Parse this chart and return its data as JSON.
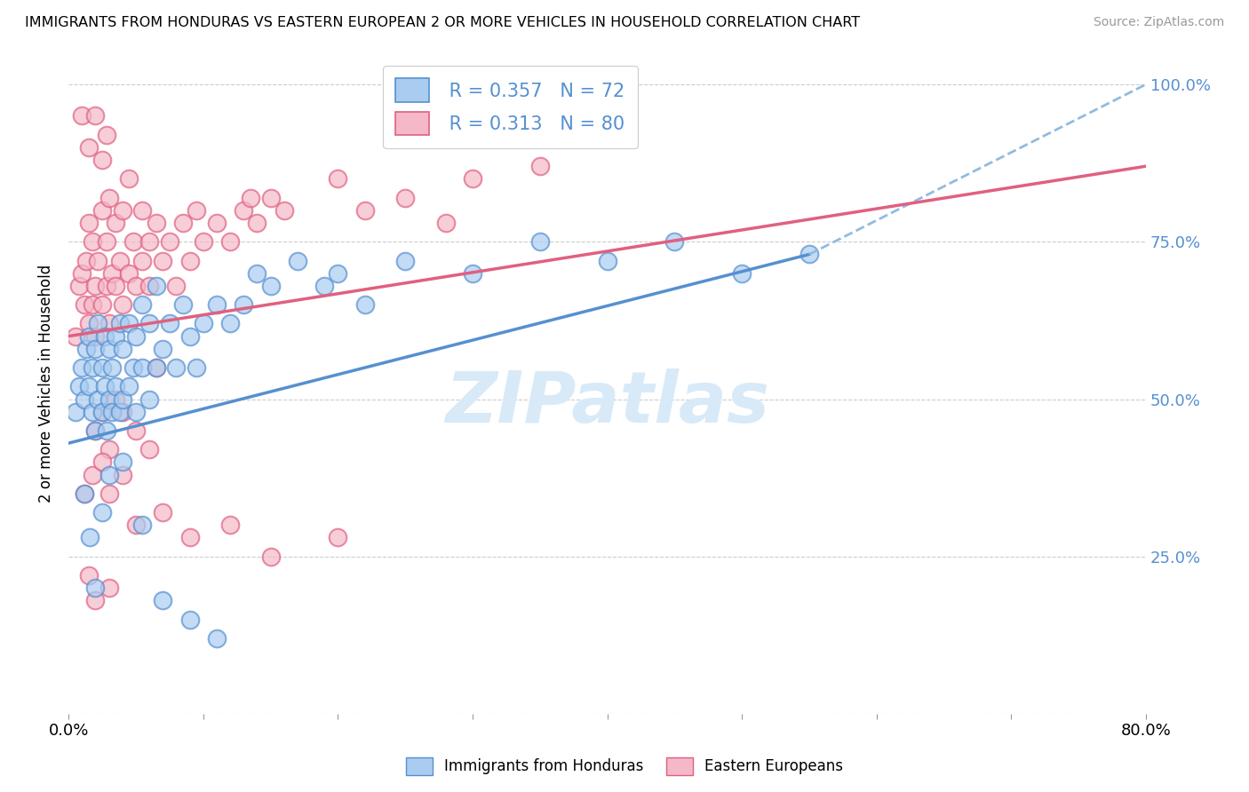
{
  "title": "IMMIGRANTS FROM HONDURAS VS EASTERN EUROPEAN 2 OR MORE VEHICLES IN HOUSEHOLD CORRELATION CHART",
  "source": "Source: ZipAtlas.com",
  "ylabel": "2 or more Vehicles in Household",
  "legend_label1": "Immigrants from Honduras",
  "legend_label2": "Eastern Europeans",
  "R1": 0.357,
  "N1": 72,
  "R2": 0.313,
  "N2": 80,
  "color1": "#aaccf0",
  "color2": "#f5b8c8",
  "line_color1": "#5590d0",
  "line_color2": "#e06080",
  "dashed_color": "#90bce0",
  "watermark_color": "#d8eaf8",
  "background": "#ffffff",
  "xlim": [
    0.0,
    0.8
  ],
  "ylim": [
    0.0,
    1.05
  ],
  "ytick_vals": [
    0.0,
    0.25,
    0.5,
    0.75,
    1.0
  ],
  "ytick_labels": [
    "",
    "25.0%",
    "50.0%",
    "75.0%",
    "100.0%"
  ],
  "blue_line_x0": 0.0,
  "blue_line_y0": 0.43,
  "blue_line_x1": 0.55,
  "blue_line_y1": 0.73,
  "pink_line_x0": 0.0,
  "pink_line_y0": 0.6,
  "pink_line_x1": 0.8,
  "pink_line_y1": 0.87,
  "dash_line_x0": 0.55,
  "dash_line_y0": 0.73,
  "dash_line_x1": 0.8,
  "dash_line_y1": 1.0,
  "scatter1_x": [
    0.005,
    0.008,
    0.01,
    0.012,
    0.013,
    0.015,
    0.015,
    0.018,
    0.018,
    0.02,
    0.02,
    0.022,
    0.022,
    0.025,
    0.025,
    0.027,
    0.027,
    0.028,
    0.03,
    0.03,
    0.032,
    0.032,
    0.035,
    0.035,
    0.038,
    0.038,
    0.04,
    0.04,
    0.045,
    0.045,
    0.048,
    0.05,
    0.05,
    0.055,
    0.055,
    0.06,
    0.06,
    0.065,
    0.065,
    0.07,
    0.075,
    0.08,
    0.085,
    0.09,
    0.095,
    0.1,
    0.11,
    0.12,
    0.13,
    0.14,
    0.15,
    0.17,
    0.19,
    0.2,
    0.22,
    0.25,
    0.3,
    0.35,
    0.4,
    0.45,
    0.5,
    0.55,
    0.012,
    0.016,
    0.02,
    0.025,
    0.03,
    0.04,
    0.055,
    0.07,
    0.09,
    0.11
  ],
  "scatter1_y": [
    0.48,
    0.52,
    0.55,
    0.5,
    0.58,
    0.52,
    0.6,
    0.48,
    0.55,
    0.45,
    0.58,
    0.5,
    0.62,
    0.48,
    0.55,
    0.52,
    0.6,
    0.45,
    0.5,
    0.58,
    0.48,
    0.55,
    0.52,
    0.6,
    0.48,
    0.62,
    0.5,
    0.58,
    0.52,
    0.62,
    0.55,
    0.48,
    0.6,
    0.55,
    0.65,
    0.5,
    0.62,
    0.55,
    0.68,
    0.58,
    0.62,
    0.55,
    0.65,
    0.6,
    0.55,
    0.62,
    0.65,
    0.62,
    0.65,
    0.7,
    0.68,
    0.72,
    0.68,
    0.7,
    0.65,
    0.72,
    0.7,
    0.75,
    0.72,
    0.75,
    0.7,
    0.73,
    0.35,
    0.28,
    0.2,
    0.32,
    0.38,
    0.4,
    0.3,
    0.18,
    0.15,
    0.12
  ],
  "scatter2_x": [
    0.005,
    0.008,
    0.01,
    0.012,
    0.013,
    0.015,
    0.015,
    0.018,
    0.018,
    0.02,
    0.02,
    0.022,
    0.025,
    0.025,
    0.028,
    0.028,
    0.03,
    0.03,
    0.032,
    0.035,
    0.035,
    0.038,
    0.04,
    0.04,
    0.045,
    0.045,
    0.048,
    0.05,
    0.055,
    0.055,
    0.06,
    0.06,
    0.065,
    0.07,
    0.075,
    0.08,
    0.085,
    0.09,
    0.095,
    0.1,
    0.11,
    0.12,
    0.13,
    0.135,
    0.14,
    0.15,
    0.16,
    0.2,
    0.22,
    0.25,
    0.28,
    0.3,
    0.35,
    0.02,
    0.025,
    0.03,
    0.035,
    0.04,
    0.05,
    0.06,
    0.065,
    0.012,
    0.018,
    0.025,
    0.03,
    0.04,
    0.05,
    0.07,
    0.09,
    0.12,
    0.15,
    0.2,
    0.01,
    0.015,
    0.02,
    0.025,
    0.028,
    0.015,
    0.02,
    0.03
  ],
  "scatter2_y": [
    0.6,
    0.68,
    0.7,
    0.65,
    0.72,
    0.62,
    0.78,
    0.65,
    0.75,
    0.6,
    0.68,
    0.72,
    0.65,
    0.8,
    0.68,
    0.75,
    0.62,
    0.82,
    0.7,
    0.68,
    0.78,
    0.72,
    0.65,
    0.8,
    0.7,
    0.85,
    0.75,
    0.68,
    0.72,
    0.8,
    0.68,
    0.75,
    0.78,
    0.72,
    0.75,
    0.68,
    0.78,
    0.72,
    0.8,
    0.75,
    0.78,
    0.75,
    0.8,
    0.82,
    0.78,
    0.82,
    0.8,
    0.85,
    0.8,
    0.82,
    0.78,
    0.85,
    0.87,
    0.45,
    0.48,
    0.42,
    0.5,
    0.48,
    0.45,
    0.42,
    0.55,
    0.35,
    0.38,
    0.4,
    0.35,
    0.38,
    0.3,
    0.32,
    0.28,
    0.3,
    0.25,
    0.28,
    0.95,
    0.9,
    0.95,
    0.88,
    0.92,
    0.22,
    0.18,
    0.2
  ]
}
